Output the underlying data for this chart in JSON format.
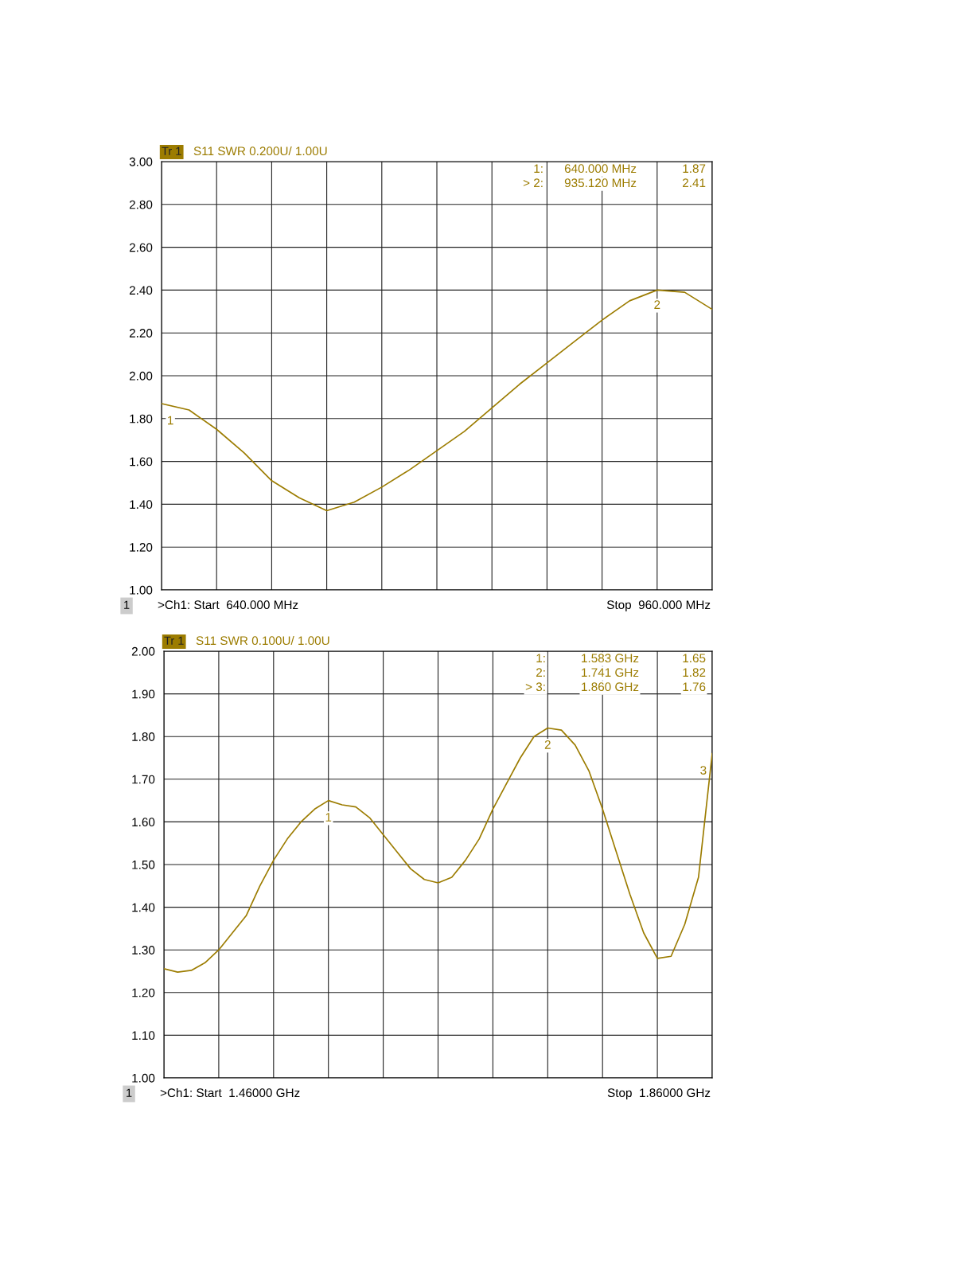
{
  "chart_data": [
    {
      "type": "line",
      "title": "S11 SWR 0.200U/ 1.00U",
      "ylim": [
        1,
        3
      ],
      "tick_labels": "y",
      "grid": true,
      "legend": false,
      "marker": "none",
      "line_style": "solid",
      "yticks": [
        {
          "value": 1,
          "label": "1.00"
        },
        {
          "value": 1.2,
          "label": "1.20"
        },
        {
          "value": 1.4,
          "label": "1.40"
        },
        {
          "value": 1.6,
          "label": "1.60"
        },
        {
          "value": 1.8,
          "label": "1.80"
        },
        {
          "value": 2,
          "label": "2.00"
        },
        {
          "value": 2.2,
          "label": "2.20"
        },
        {
          "value": 2.4,
          "label": "2.40"
        },
        {
          "value": 2.6,
          "label": "2.60"
        },
        {
          "value": 2.8,
          "label": "2.80"
        },
        {
          "value": 3,
          "label": "3.00"
        }
      ],
      "categories": [
        null,
        null,
        null,
        null,
        null,
        null,
        null,
        null,
        null,
        null,
        null,
        null,
        null,
        null,
        null,
        null,
        null,
        null,
        null,
        null,
        null
      ],
      "series": [
        {
          "color": "#9c7c00",
          "values": [
            1.87,
            1.84,
            1.75,
            1.64,
            1.51,
            1.43,
            1.37,
            1.41,
            1.48,
            1.56,
            1.65,
            1.74,
            1.85,
            1.96,
            2.06,
            2.16,
            2.26,
            2.35,
            2.4,
            2.39,
            2.31
          ]
        }
      ],
      "annotations": [
        "Tr 1",
        "1:",
        "640.000 MHz",
        "1.87",
        "> 2:",
        "935.120 MHz",
        "2.41",
        "1",
        ">Ch1: Start  640.000 MHz",
        "Stop  960.000 MHz",
        {
          "text": "1",
          "y": 1.87
        },
        {
          "text": "2",
          "y": 2.41
        }
      ]
    },
    {
      "type": "line",
      "title": "S11 SWR 0.100U/ 1.00U",
      "ylim": [
        1,
        2
      ],
      "tick_labels": "y",
      "grid": true,
      "legend": false,
      "marker": "none",
      "line_style": "solid",
      "yticks": [
        {
          "value": 1,
          "label": "1.00"
        },
        {
          "value": 1.1,
          "label": "1.10"
        },
        {
          "value": 1.2,
          "label": "1.20"
        },
        {
          "value": 1.3,
          "label": "1.30"
        },
        {
          "value": 1.4,
          "label": "1.40"
        },
        {
          "value": 1.5,
          "label": "1.50"
        },
        {
          "value": 1.6,
          "label": "1.60"
        },
        {
          "value": 1.7,
          "label": "1.70"
        },
        {
          "value": 1.8,
          "label": "1.80"
        },
        {
          "value": 1.9,
          "label": "1.90"
        },
        {
          "value": 2,
          "label": "2.00"
        }
      ],
      "categories": [
        null,
        null,
        null,
        null,
        null,
        null,
        null,
        null,
        null,
        null,
        null,
        null,
        null,
        null,
        null,
        null,
        null,
        null,
        null,
        null,
        null,
        null,
        null,
        null,
        null,
        null,
        null,
        null,
        null,
        null,
        null,
        null,
        null,
        null,
        null,
        null,
        null,
        null,
        null,
        null,
        null
      ],
      "series": [
        {
          "color": "#9c7c00",
          "values": [
            1.256,
            1.248,
            1.252,
            1.27,
            1.3,
            1.34,
            1.38,
            1.45,
            1.51,
            1.56,
            1.6,
            1.63,
            1.65,
            1.64,
            1.635,
            1.61,
            1.57,
            1.53,
            1.49,
            1.465,
            1.457,
            1.47,
            1.51,
            1.56,
            1.63,
            1.69,
            1.75,
            1.8,
            1.82,
            1.815,
            1.78,
            1.72,
            1.63,
            1.53,
            1.43,
            1.34,
            1.28,
            1.285,
            1.36,
            1.47,
            1.76
          ]
        }
      ],
      "annotations": [
        "Tr 1",
        "1:",
        "1.583 GHz",
        "1.65",
        "2:",
        "1.741 GHz",
        "1.82",
        "> 3:",
        "1.860 GHz",
        "1.76",
        "1",
        ">Ch1: Start  1.46000 GHz",
        "Stop  1.86000 GHz",
        {
          "text": "1",
          "y": 1.65
        },
        {
          "text": "2",
          "y": 1.82
        },
        {
          "text": "3"
        }
      ]
    }
  ]
}
